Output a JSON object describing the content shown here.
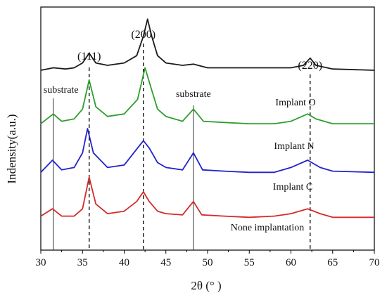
{
  "chart_data": {
    "type": "line",
    "title": "",
    "xlabel": "2θ (° )",
    "ylabel": "Indensity(a.u.)",
    "xlim": [
      30,
      70
    ],
    "xticks": [
      30,
      35,
      40,
      45,
      50,
      55,
      60,
      65,
      70
    ],
    "y_ticks_shown": false,
    "grid": false,
    "legend": "none (series labeled inline)",
    "series": [
      {
        "name": "Implant O",
        "color": "#1a1a1a",
        "baseline": 0.74,
        "points": [
          [
            30,
            0.74
          ],
          [
            31.5,
            0.75
          ],
          [
            33,
            0.745
          ],
          [
            34,
            0.75
          ],
          [
            35,
            0.77
          ],
          [
            35.8,
            0.81
          ],
          [
            36.6,
            0.77
          ],
          [
            38,
            0.76
          ],
          [
            40,
            0.77
          ],
          [
            41.5,
            0.8
          ],
          [
            42.3,
            0.88
          ],
          [
            42.8,
            0.95
          ],
          [
            43.3,
            0.88
          ],
          [
            44,
            0.8
          ],
          [
            45,
            0.77
          ],
          [
            47,
            0.76
          ],
          [
            48.3,
            0.765
          ],
          [
            50,
            0.75
          ],
          [
            55,
            0.75
          ],
          [
            60,
            0.75
          ],
          [
            61.5,
            0.76
          ],
          [
            62.3,
            0.79
          ],
          [
            63,
            0.76
          ],
          [
            65,
            0.745
          ],
          [
            70,
            0.74
          ]
        ]
      },
      {
        "name": "Implant N",
        "color": "#2e9e2e",
        "baseline": 0.52,
        "points": [
          [
            30,
            0.52
          ],
          [
            31.5,
            0.56
          ],
          [
            32.5,
            0.53
          ],
          [
            34,
            0.54
          ],
          [
            35,
            0.58
          ],
          [
            35.8,
            0.7
          ],
          [
            36.6,
            0.59
          ],
          [
            38,
            0.55
          ],
          [
            40,
            0.56
          ],
          [
            41.6,
            0.62
          ],
          [
            42.5,
            0.75
          ],
          [
            43.2,
            0.67
          ],
          [
            44,
            0.58
          ],
          [
            45,
            0.55
          ],
          [
            47,
            0.53
          ],
          [
            48.3,
            0.58
          ],
          [
            49.5,
            0.53
          ],
          [
            52,
            0.525
          ],
          [
            55,
            0.52
          ],
          [
            58,
            0.52
          ],
          [
            60,
            0.53
          ],
          [
            62,
            0.56
          ],
          [
            63,
            0.54
          ],
          [
            65,
            0.52
          ],
          [
            70,
            0.52
          ]
        ]
      },
      {
        "name": "Implant C",
        "color": "#2222cc",
        "baseline": 0.32,
        "points": [
          [
            30,
            0.32
          ],
          [
            31.4,
            0.37
          ],
          [
            32.5,
            0.33
          ],
          [
            34,
            0.34
          ],
          [
            35,
            0.4
          ],
          [
            35.6,
            0.5
          ],
          [
            36.3,
            0.4
          ],
          [
            38,
            0.34
          ],
          [
            40,
            0.35
          ],
          [
            41.6,
            0.42
          ],
          [
            42.3,
            0.45
          ],
          [
            43,
            0.42
          ],
          [
            44,
            0.36
          ],
          [
            45,
            0.34
          ],
          [
            47,
            0.33
          ],
          [
            48.3,
            0.4
          ],
          [
            49.4,
            0.33
          ],
          [
            52,
            0.325
          ],
          [
            55,
            0.32
          ],
          [
            58,
            0.32
          ],
          [
            60,
            0.34
          ],
          [
            62,
            0.37
          ],
          [
            63.5,
            0.34
          ],
          [
            65,
            0.325
          ],
          [
            70,
            0.32
          ]
        ]
      },
      {
        "name": "None implantation",
        "color": "#d42a2a",
        "baseline": 0.14,
        "points": [
          [
            30,
            0.14
          ],
          [
            31.4,
            0.17
          ],
          [
            32.5,
            0.14
          ],
          [
            34,
            0.14
          ],
          [
            35,
            0.17
          ],
          [
            35.8,
            0.3
          ],
          [
            36.6,
            0.19
          ],
          [
            38,
            0.15
          ],
          [
            40,
            0.16
          ],
          [
            41.5,
            0.2
          ],
          [
            42.3,
            0.24
          ],
          [
            43,
            0.2
          ],
          [
            44,
            0.16
          ],
          [
            45,
            0.15
          ],
          [
            47,
            0.145
          ],
          [
            48.3,
            0.2
          ],
          [
            49.3,
            0.145
          ],
          [
            52,
            0.14
          ],
          [
            55,
            0.135
          ],
          [
            58,
            0.14
          ],
          [
            60,
            0.15
          ],
          [
            62,
            0.17
          ],
          [
            63.5,
            0.15
          ],
          [
            65,
            0.135
          ],
          [
            70,
            0.135
          ]
        ]
      }
    ],
    "reference_lines": [
      {
        "x": 31.5,
        "style": "solid",
        "label": "substrate"
      },
      {
        "x": 35.8,
        "style": "dashed",
        "label": "(111)"
      },
      {
        "x": 42.3,
        "style": "dashed",
        "label": "(200)"
      },
      {
        "x": 48.3,
        "style": "solid",
        "label": "substrate"
      },
      {
        "x": 62.3,
        "style": "dashed",
        "label": "(220)"
      }
    ]
  }
}
